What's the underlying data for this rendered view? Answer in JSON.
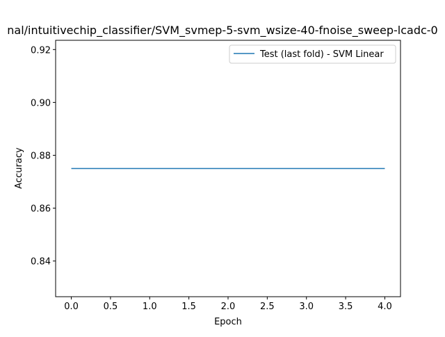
{
  "chart_data": {
    "type": "line",
    "title": "nal/intuitivechip_classifier/SVM_svmep-5-svm_wsize-40-fnoise_sweep-lcadc-0",
    "xlabel": "Epoch",
    "ylabel": "Accuracy",
    "xlim": [
      -0.2,
      4.2
    ],
    "ylim": [
      0.8265,
      0.9235
    ],
    "xticks": [
      0.0,
      0.5,
      1.0,
      1.5,
      2.0,
      2.5,
      3.0,
      3.5,
      4.0
    ],
    "xtick_labels": [
      "0.0",
      "0.5",
      "1.0",
      "1.5",
      "2.0",
      "2.5",
      "3.0",
      "3.5",
      "4.0"
    ],
    "yticks": [
      0.84,
      0.86,
      0.88,
      0.9,
      0.92
    ],
    "ytick_labels": [
      "0.84",
      "0.86",
      "0.88",
      "0.90",
      "0.92"
    ],
    "grid": false,
    "legend_position": "top-right",
    "series": [
      {
        "name": "Test (last fold) - SVM Linear",
        "color": "#1f77b4",
        "x": [
          0,
          1,
          2,
          3,
          4
        ],
        "y": [
          0.875,
          0.875,
          0.875,
          0.875,
          0.875
        ]
      }
    ]
  }
}
